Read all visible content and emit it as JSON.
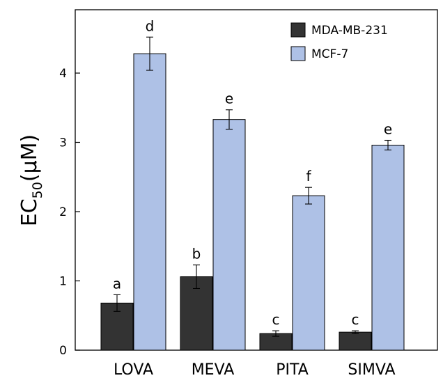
{
  "chart_data": {
    "type": "bar",
    "title": "",
    "xlabel": "",
    "ylabel": {
      "main": "EC",
      "subscript": "50",
      "unit": "(µM)"
    },
    "ylim": [
      0,
      5
    ],
    "yticks": [
      0,
      1,
      2,
      3,
      4
    ],
    "categories": [
      "LOVA",
      "MEVA",
      "PITA",
      "SIMVA"
    ],
    "series": [
      {
        "name": "MDA-MB-231",
        "color": "#333333",
        "values": [
          0.68,
          1.06,
          0.24,
          0.26
        ],
        "errors": [
          0.12,
          0.17,
          0.04,
          0.02
        ],
        "labels": [
          "a",
          "b",
          "c",
          "c"
        ]
      },
      {
        "name": "MCF-7",
        "color": "#aec1e6",
        "values": [
          4.28,
          3.33,
          2.23,
          2.96
        ],
        "errors": [
          0.24,
          0.14,
          0.12,
          0.07
        ],
        "labels": [
          "d",
          "e",
          "f",
          "e"
        ]
      }
    ],
    "legend_position": "top-right",
    "grid": false
  }
}
